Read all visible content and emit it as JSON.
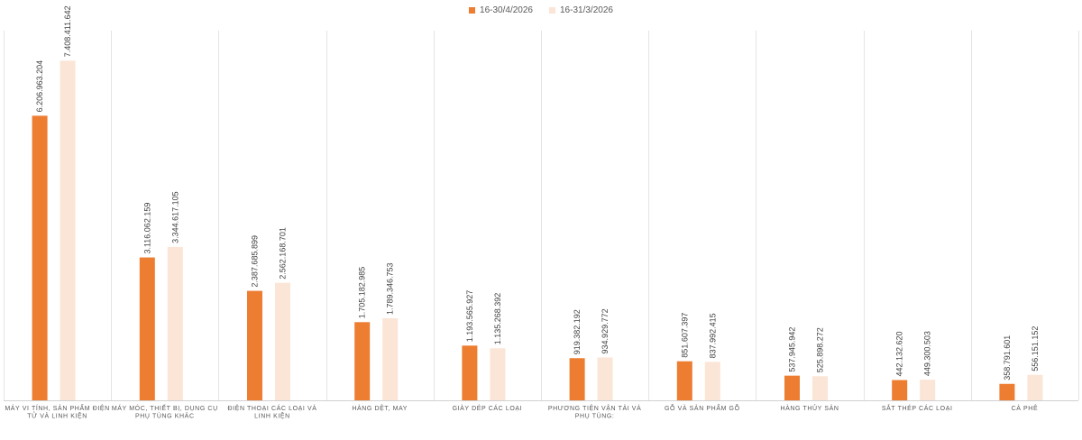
{
  "chart_data": {
    "type": "bar",
    "title": "",
    "xlabel": "",
    "ylabel": "",
    "ylim": [
      0,
      7800000
    ],
    "grid": false,
    "legend_position": "top-center",
    "categories": [
      "MÁY VI TÍNH, SẢN PHẨM ĐIỆN TỬ VÀ LINH KIỆN",
      "MÁY MÓC, THIẾT BỊ, DỤNG CỤ PHỤ TÙNG KHÁC",
      "ĐIỆN THOẠI CÁC LOẠI VÀ LINH KIỆN",
      "HÀNG DỆT, MAY",
      "GIÀY DÉP CÁC LOẠI",
      "PHƯƠNG TIỆN VẬN TẢI VÀ PHỤ TÙNG:",
      "GỖ VÀ SẢN PHẨM GỖ",
      "HÀNG THỦY SẢN",
      "SẮT THÉP CÁC LOẠI",
      "CÀ PHÊ"
    ],
    "category_lines": [
      [
        "MÁY VI TÍNH, SẢN PHẨM ĐIỆN",
        "TỬ VÀ LINH KIỆN"
      ],
      [
        "MÁY MÓC, THIẾT BỊ, DỤNG CỤ",
        "PHỤ TÙNG KHÁC"
      ],
      [
        "ĐIỆN THOẠI CÁC LOẠI VÀ",
        "LINH KIỆN"
      ],
      [
        "HÀNG DỆT, MAY"
      ],
      [
        "GIÀY DÉP CÁC LOẠI"
      ],
      [
        "PHƯƠNG TIỆN VẬN TẢI VÀ",
        "PHỤ TÙNG:"
      ],
      [
        "GỖ VÀ SẢN PHẨM GỖ"
      ],
      [
        "HÀNG THỦY SẢN"
      ],
      [
        "SẮT THÉP CÁC LOẠI"
      ],
      [
        "CÀ PHÊ"
      ]
    ],
    "series": [
      {
        "name": "16-30/4/2026",
        "color": "#ED7D31",
        "values": [
          6206963204,
          3116062159,
          2387685899,
          1705182985,
          1193565927,
          919382192,
          851607397,
          537945942,
          442132620,
          358791601
        ],
        "labels": [
          "6.206.963.204",
          "3.116.062.159",
          "2.387.685.899",
          "1.705.182.985",
          "1.193.565.927",
          "919.382.192",
          "851.607.397",
          "537.945.942",
          "442.132.620",
          "358.791.601"
        ]
      },
      {
        "name": "16-31/3/2026",
        "color": "#FBE5D6",
        "values": [
          7408411642,
          3344617105,
          2562168701,
          1789346753,
          1135268392,
          934929772,
          837992415,
          525898272,
          449300503,
          556151152
        ],
        "labels": [
          "7.408.411.642",
          "3.344.617.105",
          "2.562.168.701",
          "1.789.346.753",
          "1.135.268.392",
          "934.929.772",
          "837.992.415",
          "525.898.272",
          "449.300.503",
          "556.151.152"
        ]
      }
    ]
  }
}
